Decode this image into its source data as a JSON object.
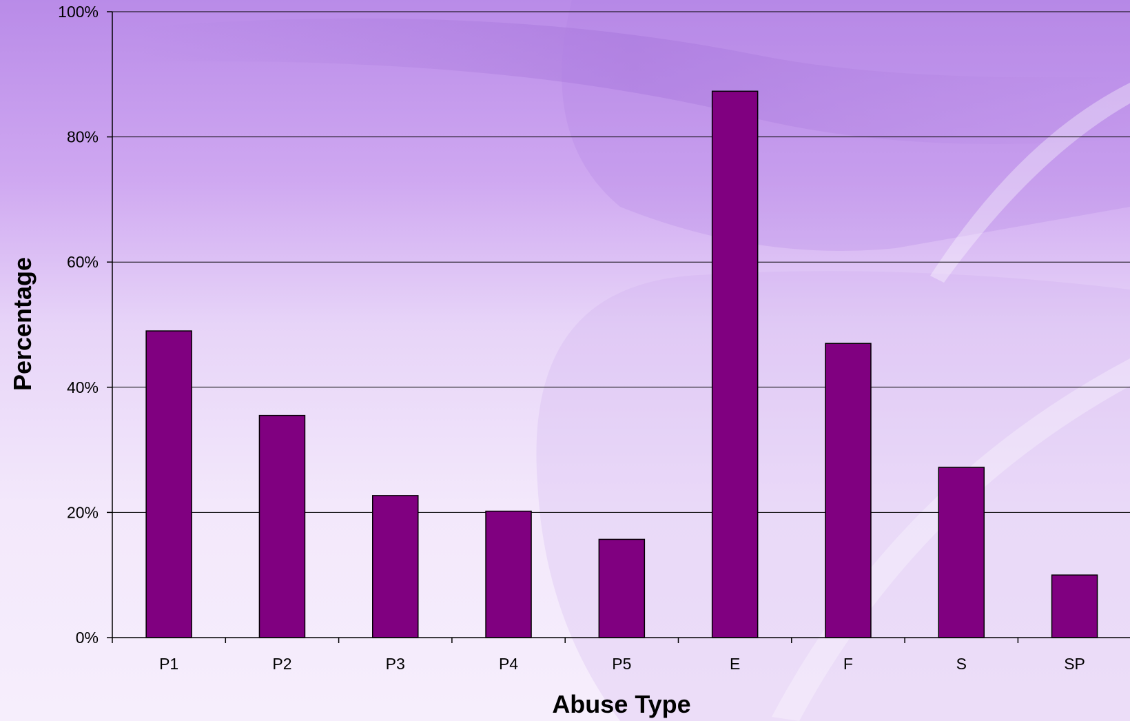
{
  "chart_data": {
    "type": "bar",
    "title": "",
    "xlabel": "Abuse Type",
    "ylabel": "Percentage",
    "categories": [
      "P1",
      "P2",
      "P3",
      "P4",
      "P5",
      "E",
      "F",
      "S",
      "SP"
    ],
    "values": [
      49,
      35.5,
      22.7,
      20.2,
      15.7,
      87.3,
      47,
      27.2,
      10
    ],
    "ylim": [
      0,
      100
    ],
    "yticks": [
      0,
      20,
      40,
      60,
      80,
      100
    ],
    "ytick_labels": [
      "0%",
      "20%",
      "40%",
      "60%",
      "80%",
      "100%"
    ],
    "grid": "horizontal",
    "legend": "none",
    "colors": {
      "bar": "#800080",
      "bar_stroke": "#000000",
      "background_top": "#b98be8",
      "background_mid": "#dcc3f3",
      "background_bottom": "#f6eefc"
    }
  }
}
